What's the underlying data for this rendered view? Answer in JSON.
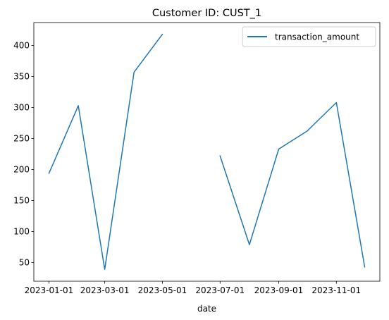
{
  "chart_data": {
    "type": "line",
    "title": "Customer ID: CUST_1",
    "xlabel": "date",
    "ylabel": "",
    "x": [
      "2023-01-01",
      "2023-02-01",
      "2023-03-01",
      "2023-04-01",
      "2023-05-01",
      "2023-06-01",
      "2023-07-01",
      "2023-08-01",
      "2023-09-01",
      "2023-10-01",
      "2023-11-01",
      "2023-12-01"
    ],
    "series": [
      {
        "name": "transaction_amount",
        "color": "#1f77b4",
        "values": [
          194,
          303,
          39,
          357,
          418,
          null,
          222,
          79,
          233,
          262,
          308,
          43
        ]
      }
    ],
    "x_ticks": [
      "2023-01-01",
      "2023-03-01",
      "2023-05-01",
      "2023-07-01",
      "2023-09-01",
      "2023-11-01"
    ],
    "y_ticks": [
      50,
      100,
      150,
      200,
      250,
      300,
      350,
      400
    ],
    "xlim": [
      "2022-12-16",
      "2023-12-17"
    ],
    "ylim": [
      20,
      437
    ],
    "grid": false,
    "legend_position": "top-right"
  }
}
